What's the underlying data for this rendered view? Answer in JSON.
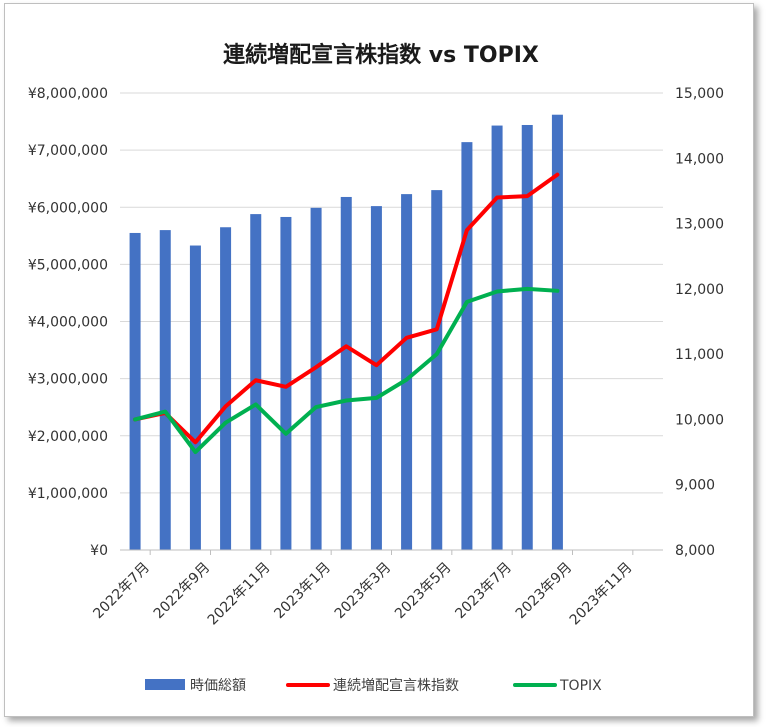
{
  "chart_data": {
    "type": "bar",
    "title": "連続増配宣言株指数 vs TOPIX",
    "x": [
      "2022年7月",
      "2022年8月",
      "2022年9月",
      "2022年10月",
      "2022年11月",
      "2022年12月",
      "2023年1月",
      "2023年2月",
      "2023年3月",
      "2023年4月",
      "2023年5月",
      "2023年6月",
      "2023年7月",
      "2023年8月",
      "2023年9月"
    ],
    "x_tick_labels": [
      "2022年7月",
      "2022年9月",
      "2022年11月",
      "2023年1月",
      "2023年3月",
      "2023年5月",
      "2023年7月",
      "2023年9月",
      "2023年11月"
    ],
    "y_left": {
      "ylim": [
        0,
        8000000
      ],
      "tick_labels": [
        "¥0",
        "¥1,000,000",
        "¥2,000,000",
        "¥3,000,000",
        "¥4,000,000",
        "¥5,000,000",
        "¥6,000,000",
        "¥7,000,000",
        "¥8,000,000"
      ]
    },
    "y_right": {
      "ylim": [
        8000,
        15000
      ],
      "tick_labels": [
        "8,000",
        "9,000",
        "10,000",
        "11,000",
        "12,000",
        "13,000",
        "14,000",
        "15,000"
      ]
    },
    "grid": true,
    "legend_position": "bottom",
    "series": [
      {
        "name": "時価総額",
        "kind": "bar",
        "axis": "left",
        "color": "#4472C4",
        "values": [
          5550000,
          5600000,
          5330000,
          5650000,
          5880000,
          5830000,
          5990000,
          6180000,
          6020000,
          6230000,
          6300000,
          7140000,
          7430000,
          7440000,
          7620000
        ]
      },
      {
        "name": "連続増配宣言株指数",
        "kind": "line",
        "axis": "right",
        "color": "#FF0000",
        "values": [
          10000,
          10100,
          9650,
          10200,
          10600,
          10500,
          10800,
          11120,
          10830,
          11250,
          11380,
          12900,
          13400,
          13420,
          13750
        ]
      },
      {
        "name": "TOPIX",
        "kind": "line",
        "axis": "right",
        "color": "#00B050",
        "values": [
          10000,
          10120,
          9500,
          9950,
          10230,
          9780,
          10190,
          10290,
          10330,
          10610,
          11000,
          11800,
          11960,
          12000,
          11970
        ]
      }
    ]
  }
}
